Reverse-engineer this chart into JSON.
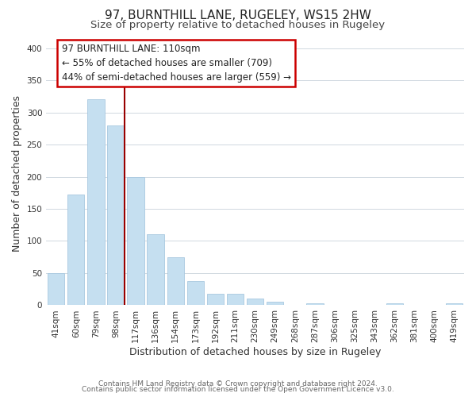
{
  "title": "97, BURNTHILL LANE, RUGELEY, WS15 2HW",
  "subtitle": "Size of property relative to detached houses in Rugeley",
  "xlabel": "Distribution of detached houses by size in Rugeley",
  "ylabel": "Number of detached properties",
  "footer_line1": "Contains HM Land Registry data © Crown copyright and database right 2024.",
  "footer_line2": "Contains public sector information licensed under the Open Government Licence v3.0.",
  "annotation_title": "97 BURNTHILL LANE: 110sqm",
  "annotation_line1": "← 55% of detached houses are smaller (709)",
  "annotation_line2": "44% of semi-detached houses are larger (559) →",
  "bar_labels": [
    "41sqm",
    "60sqm",
    "79sqm",
    "98sqm",
    "117sqm",
    "136sqm",
    "154sqm",
    "173sqm",
    "192sqm",
    "211sqm",
    "230sqm",
    "249sqm",
    "268sqm",
    "287sqm",
    "306sqm",
    "325sqm",
    "343sqm",
    "362sqm",
    "381sqm",
    "400sqm",
    "419sqm"
  ],
  "bar_values": [
    50,
    172,
    320,
    280,
    200,
    110,
    75,
    38,
    18,
    18,
    10,
    5,
    0,
    3,
    0,
    0,
    0,
    3,
    0,
    0,
    3
  ],
  "bar_color": "#c5dff0",
  "bar_edge_color": "#a8c8e0",
  "vline_color": "#990000",
  "annotation_box_color": "#ffffff",
  "annotation_box_edge_color": "#cc0000",
  "ylim": [
    0,
    410
  ],
  "yticks": [
    0,
    50,
    100,
    150,
    200,
    250,
    300,
    350,
    400
  ],
  "background_color": "#ffffff",
  "grid_color": "#d0d8e0",
  "title_fontsize": 11,
  "subtitle_fontsize": 9.5,
  "axis_label_fontsize": 9,
  "tick_fontsize": 7.5,
  "annotation_fontsize": 8.5,
  "footer_fontsize": 6.5
}
